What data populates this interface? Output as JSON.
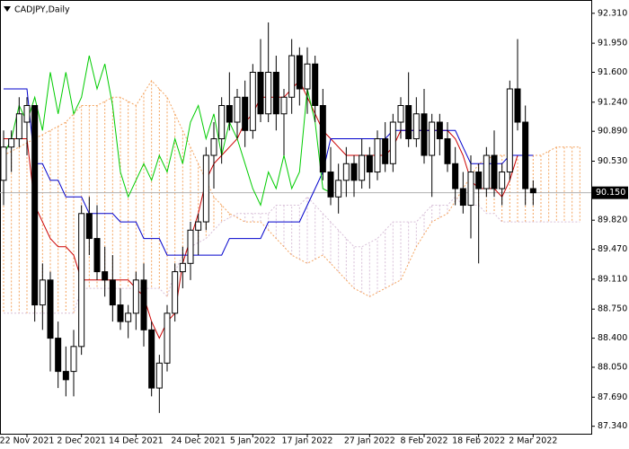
{
  "chart_data": {
    "type": "candlestick",
    "title": "CADJPY,Daily",
    "categories": [
      null,
      null,
      null,
      "22 Nov 2021",
      null,
      null,
      null,
      null,
      null,
      null,
      "2 Dec 2021",
      null,
      null,
      null,
      null,
      null,
      null,
      "14 Dec 2021",
      null,
      null,
      null,
      null,
      null,
      null,
      null,
      "24 Dec 2021",
      null,
      null,
      null,
      null,
      null,
      null,
      "5 Jan 2022",
      null,
      null,
      null,
      null,
      null,
      null,
      "17 Jan 2022",
      null,
      null,
      null,
      null,
      null,
      null,
      null,
      "27 Jan 2022",
      null,
      null,
      null,
      null,
      null,
      null,
      "8 Feb 2022",
      null,
      null,
      null,
      null,
      null,
      null,
      "18 Feb 2022",
      null,
      null,
      null,
      null,
      null,
      null,
      "2 Mar 2022",
      null,
      null,
      null,
      null,
      null,
      null
    ],
    "ohlc": {
      "open": [
        90.3,
        90.7,
        90.8,
        91.0,
        91.2,
        88.8,
        89.1,
        88.4,
        88.0,
        88.0,
        88.3,
        89.9,
        89.6,
        89.2,
        89.1,
        88.8,
        88.6,
        88.7,
        89.1,
        88.5,
        87.8,
        88.1,
        88.7,
        89.2,
        89.3,
        89.7,
        89.8,
        90.6,
        90.8,
        91.2,
        91.0,
        91.3,
        90.9,
        91.6,
        91.1,
        91.6,
        91.1,
        91.3,
        91.8,
        91.4,
        91.7,
        91.2,
        90.4,
        90.1,
        90.3,
        90.5,
        90.3,
        90.6,
        90.4,
        90.8,
        90.5,
        91.0,
        91.2,
        90.8,
        91.1,
        90.6,
        91.0,
        90.8,
        90.5,
        90.2,
        90.0,
        90.4,
        90.2,
        90.6,
        90.2,
        90.4,
        91.4,
        91.0,
        90.2
      ],
      "high": [
        90.9,
        90.9,
        91.3,
        91.3,
        91.2,
        89.3,
        89.2,
        88.6,
        88.3,
        88.5,
        90.0,
        90.1,
        90.0,
        89.5,
        89.4,
        89.0,
        88.8,
        89.2,
        89.3,
        88.6,
        88.2,
        88.8,
        89.3,
        89.5,
        89.8,
        89.9,
        90.7,
        91.0,
        91.3,
        91.6,
        91.4,
        91.5,
        91.7,
        92.0,
        92.2,
        91.8,
        91.4,
        92.0,
        91.9,
        91.9,
        91.8,
        91.4,
        90.7,
        90.5,
        90.7,
        90.6,
        90.8,
        90.7,
        90.9,
        91.0,
        91.1,
        91.3,
        91.6,
        91.3,
        91.4,
        91.1,
        91.1,
        91.0,
        90.7,
        90.4,
        90.6,
        90.5,
        90.7,
        90.9,
        90.5,
        91.5,
        92.0,
        91.2,
        90.3
      ],
      "low": [
        90.0,
        90.4,
        90.7,
        90.6,
        88.6,
        88.5,
        88.0,
        87.8,
        87.7,
        87.7,
        88.2,
        89.4,
        89.1,
        88.9,
        88.6,
        88.5,
        88.4,
        88.5,
        88.3,
        87.7,
        87.5,
        88.0,
        88.6,
        89.0,
        89.1,
        89.4,
        89.7,
        90.2,
        90.5,
        90.9,
        90.8,
        90.7,
        90.8,
        91.0,
        91.0,
        90.9,
        90.6,
        91.1,
        91.2,
        91.1,
        91.0,
        90.3,
        90.0,
        89.9,
        90.1,
        90.1,
        90.2,
        90.2,
        90.3,
        90.4,
        90.4,
        90.8,
        90.7,
        90.7,
        90.5,
        90.1,
        90.6,
        90.4,
        90.0,
        89.9,
        89.6,
        89.3,
        90.1,
        90.1,
        90.0,
        90.3,
        90.9,
        90.0,
        90.0
      ],
      "close": [
        90.7,
        90.8,
        91.1,
        91.2,
        88.8,
        89.1,
        88.4,
        88.0,
        87.9,
        88.3,
        89.9,
        89.6,
        89.2,
        89.1,
        88.8,
        88.6,
        88.7,
        89.1,
        88.5,
        87.8,
        88.1,
        88.7,
        89.2,
        89.3,
        89.7,
        89.8,
        90.6,
        90.8,
        91.2,
        91.0,
        91.3,
        90.9,
        91.6,
        91.1,
        91.6,
        91.1,
        91.3,
        91.8,
        91.4,
        91.7,
        91.2,
        90.4,
        90.1,
        90.3,
        90.5,
        90.3,
        90.6,
        90.4,
        90.8,
        90.5,
        91.0,
        91.2,
        90.8,
        91.1,
        90.6,
        91.0,
        90.8,
        90.5,
        90.2,
        90.0,
        90.4,
        90.2,
        90.6,
        90.2,
        90.4,
        91.4,
        91.0,
        90.2,
        90.15
      ]
    },
    "lines": [
      {
        "color": "#cc0000",
        "values": [
          90.8,
          90.8,
          90.8,
          90.8,
          90.0,
          89.8,
          89.6,
          89.5,
          89.5,
          89.4,
          89.1,
          89.1,
          89.1,
          89.1,
          89.1,
          89.1,
          89.1,
          89.0,
          88.9,
          88.6,
          88.4,
          88.6,
          88.7,
          89.3,
          89.6,
          89.9,
          90.3,
          90.5,
          90.6,
          90.7,
          90.8,
          91.0,
          91.1,
          91.3,
          91.3,
          91.3,
          91.3,
          91.4,
          91.5,
          91.3,
          91.1,
          90.9,
          90.8,
          90.7,
          90.6,
          90.6,
          90.6,
          90.6,
          90.6,
          90.6,
          90.7,
          90.9,
          90.9,
          90.9,
          90.9,
          90.9,
          90.9,
          90.9,
          90.8,
          90.6,
          90.3,
          90.2,
          90.2,
          90.2,
          90.1,
          90.3,
          90.6,
          90.6,
          90.6
        ]
      },
      {
        "color": "#0000cc",
        "values": [
          91.4,
          91.4,
          91.4,
          91.4,
          90.5,
          90.5,
          90.3,
          90.3,
          90.1,
          90.1,
          90.1,
          89.9,
          89.9,
          89.9,
          89.9,
          89.8,
          89.8,
          89.8,
          89.6,
          89.6,
          89.6,
          89.4,
          89.4,
          89.4,
          89.4,
          89.4,
          89.4,
          89.4,
          89.4,
          89.6,
          89.6,
          89.6,
          89.6,
          89.6,
          89.8,
          89.8,
          89.8,
          89.8,
          89.8,
          90.0,
          90.2,
          90.4,
          90.8,
          90.8,
          90.8,
          90.8,
          90.8,
          90.8,
          90.8,
          90.8,
          90.9,
          90.9,
          90.9,
          90.9,
          90.9,
          90.9,
          90.9,
          90.9,
          90.9,
          90.7,
          90.5,
          90.5,
          90.5,
          90.5,
          90.5,
          90.6,
          90.6,
          90.6,
          90.6
        ]
      },
      {
        "color": "#00cc00",
        "values": [
          90.6,
          90.8,
          91.2,
          91.0,
          91.3,
          90.9,
          91.6,
          91.1,
          91.6,
          91.1,
          91.3,
          91.8,
          91.4,
          91.7,
          91.2,
          90.4,
          90.1,
          90.3,
          90.5,
          90.3,
          90.6,
          90.4,
          90.8,
          90.5,
          91.0,
          91.2,
          90.8,
          91.1,
          90.6,
          91.0,
          90.8,
          90.5,
          90.2,
          90.0,
          90.4,
          90.2,
          90.6,
          90.2,
          90.4,
          91.4,
          91.0,
          90.2,
          90.15
        ]
      }
    ],
    "cloud": {
      "span_a": {
        "color": "#f4a460",
        "values": [
          90.6,
          90.65,
          90.7,
          90.75,
          90.8,
          90.85,
          90.9,
          90.95,
          91.0,
          91.1,
          91.2,
          91.2,
          91.2,
          91.25,
          91.3,
          91.3,
          91.25,
          91.2,
          91.35,
          91.5,
          91.4,
          91.3,
          91.1,
          90.9,
          90.7,
          90.5,
          90.3,
          90.1,
          90.0,
          89.9,
          89.85,
          89.8,
          89.8,
          89.8,
          89.7,
          89.6,
          89.5,
          89.4,
          89.35,
          89.3,
          89.35,
          89.4,
          89.3,
          89.2,
          89.1,
          89.0,
          88.95,
          88.9,
          88.95,
          89.0,
          89.05,
          89.1,
          89.3,
          89.5,
          89.65,
          89.8,
          89.85,
          89.9,
          90.05,
          90.2,
          90.35,
          90.5,
          90.55,
          90.6,
          90.6,
          90.6,
          90.6,
          90.6,
          90.6,
          90.6,
          90.65,
          90.7,
          90.7,
          90.7,
          90.7
        ]
      },
      "span_b": {
        "color": "#d8bfd8",
        "values": [
          88.7,
          88.7,
          88.7,
          88.7,
          88.7,
          88.7,
          88.7,
          88.7,
          88.7,
          88.7,
          89.0,
          89.0,
          89.0,
          89.0,
          89.0,
          89.0,
          89.0,
          89.0,
          89.0,
          89.0,
          89.0,
          88.9,
          89.2,
          89.4,
          89.5,
          89.55,
          89.6,
          89.7,
          89.8,
          89.85,
          89.9,
          89.9,
          89.9,
          89.9,
          89.9,
          90.0,
          90.0,
          90.0,
          90.0,
          90.1,
          90.0,
          89.9,
          89.8,
          89.7,
          89.6,
          89.5,
          89.5,
          89.55,
          89.6,
          89.7,
          89.8,
          89.8,
          89.8,
          89.8,
          89.9,
          90.0,
          90.0,
          90.0,
          90.1,
          90.0,
          90.0,
          90.0,
          89.9,
          89.9,
          89.8,
          89.8,
          89.8,
          89.8,
          89.8,
          89.8,
          89.8,
          89.8,
          89.8,
          89.8,
          89.8
        ]
      }
    },
    "last_price": {
      "value": 90.15,
      "label": "90.150"
    },
    "ylim": [
      87.25,
      92.47
    ],
    "yticks": [
      {
        "value": 92.31,
        "label": "92.310"
      },
      {
        "value": 91.95,
        "label": "91.950"
      },
      {
        "value": 91.6,
        "label": "91.600"
      },
      {
        "value": 91.24,
        "label": "91.240"
      },
      {
        "value": 90.89,
        "label": "90.890"
      },
      {
        "value": 90.53,
        "label": "90.530"
      },
      {
        "value": 89.82,
        "label": "89.820"
      },
      {
        "value": 89.47,
        "label": "89.470"
      },
      {
        "value": 89.11,
        "label": "89.110"
      },
      {
        "value": 88.75,
        "label": "88.750"
      },
      {
        "value": 88.4,
        "label": "88.400"
      },
      {
        "value": 88.05,
        "label": "88.050"
      },
      {
        "value": 87.69,
        "label": "87.690"
      },
      {
        "value": 87.34,
        "label": "87.340"
      }
    ],
    "grid": false
  }
}
